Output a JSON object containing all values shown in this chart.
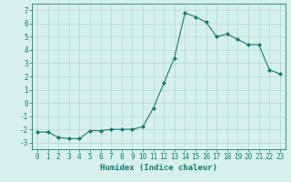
{
  "x": [
    0,
    1,
    2,
    3,
    4,
    5,
    6,
    7,
    8,
    9,
    10,
    11,
    12,
    13,
    14,
    15,
    16,
    17,
    18,
    19,
    20,
    21,
    22,
    23
  ],
  "y": [
    -2.2,
    -2.2,
    -2.6,
    -2.7,
    -2.7,
    -2.1,
    -2.1,
    -2.0,
    -2.0,
    -2.0,
    -1.8,
    -0.4,
    1.5,
    3.4,
    6.8,
    6.5,
    6.1,
    5.0,
    5.2,
    4.8,
    4.4,
    4.4,
    2.5,
    2.2
  ],
  "line_color": "#1a7a6e",
  "marker": "D",
  "marker_size": 2.0,
  "bg_color": "#d6f0ec",
  "grid_color": "#b0d8d2",
  "xlabel": "Humidex (Indice chaleur)",
  "ylim": [
    -3.5,
    7.5
  ],
  "yticks": [
    -3,
    -2,
    -1,
    0,
    1,
    2,
    3,
    4,
    5,
    6,
    7
  ],
  "xticks": [
    0,
    1,
    2,
    3,
    4,
    5,
    6,
    7,
    8,
    9,
    10,
    11,
    12,
    13,
    14,
    15,
    16,
    17,
    18,
    19,
    20,
    21,
    22,
    23
  ],
  "tick_fontsize": 5.5,
  "xlabel_fontsize": 6.5,
  "axis_color": "#1a7a6e"
}
